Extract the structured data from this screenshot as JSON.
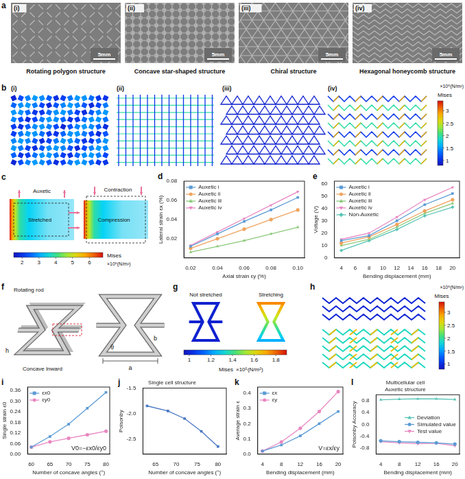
{
  "panels": {
    "a": {
      "items": [
        {
          "numeral": "(i)",
          "caption": "Rotating polygon structure",
          "scale_bar": "5mm"
        },
        {
          "numeral": "(ii)",
          "caption": "Concave star-shaped structure",
          "scale_bar": "5mm"
        },
        {
          "numeral": "(iii)",
          "caption": "Chiral structure",
          "scale_bar": "5mm"
        },
        {
          "numeral": "(iv)",
          "caption": "Hexagonal honeycomb structure",
          "scale_bar": "5mm"
        }
      ]
    },
    "b": {
      "items": [
        "(i)",
        "(ii)",
        "(iii)",
        "(iv)"
      ],
      "colorbar": {
        "title": "Mises",
        "unit": "×10⁵(N/m²)",
        "range": [
          0.8,
          3.4
        ],
        "ticks": [
          1,
          1.5,
          2,
          2.5,
          3
        ]
      }
    },
    "c": {
      "labels": {
        "top_left": "Auxetic",
        "left": "Stretched",
        "top_right": "Contraction",
        "right": "Compression"
      },
      "colorbar": {
        "title": "Mises",
        "unit": "×10⁵(N/m²)",
        "range": [
          1.5,
          6.8
        ],
        "ticks": [
          2,
          3,
          4,
          5,
          6
        ]
      }
    },
    "f": {
      "labels": {
        "rod": "Rotating rod",
        "concave": "Concave Inward",
        "h": "h",
        "a": "a",
        "b": "b",
        "theta": "θ"
      }
    },
    "g": {
      "labels": [
        "Not stretched",
        "Stretching"
      ],
      "colorbar": {
        "title": "Mises",
        "unit": "×10⁵(N/m²)",
        "range": [
          0.95,
          1.9
        ],
        "ticks": [
          1,
          1.2,
          1.4,
          1.6,
          1.8
        ]
      }
    },
    "h": {
      "colorbar": {
        "title": "Mises",
        "unit": "×10⁵(N/m²)",
        "range": [
          0.8,
          3.4
        ],
        "ticks": [
          1,
          1.5,
          2,
          2.5,
          3
        ]
      }
    }
  },
  "chart_data": [
    {
      "panel": "d",
      "type": "line",
      "x_label": "Axial strain εy (%)",
      "y_label": "Lateral strain εx (%)",
      "x": [
        0.02,
        0.04,
        0.06,
        0.08,
        0.1
      ],
      "xlim": [
        0.015,
        0.105
      ],
      "xticks": [
        0.02,
        0.04,
        0.06,
        0.08,
        {
          "value": 0.1,
          "label": "0.10"
        }
      ],
      "ylim": [
        0,
        0.08
      ],
      "yticks": [
        0.02,
        0.04,
        0.06,
        0.08
      ],
      "grid": false,
      "legend": "upper left",
      "series": [
        {
          "name": "Auxetic i",
          "color": "#5b9bd5",
          "marker": "square",
          "values": [
            0.012,
            0.025,
            0.038,
            0.05,
            0.063
          ]
        },
        {
          "name": "Auxetic ii",
          "color": "#f0a35e",
          "marker": "circle",
          "values": [
            0.01,
            0.02,
            0.03,
            0.04,
            0.05
          ]
        },
        {
          "name": "Auxetic iii",
          "color": "#8cc97a",
          "marker": "triangle",
          "values": [
            0.006,
            0.012,
            0.018,
            0.025,
            0.032
          ]
        },
        {
          "name": "Auxetic iv",
          "color": "#e887c1",
          "marker": "triangle_down",
          "values": [
            0.013,
            0.027,
            0.041,
            0.055,
            0.069
          ]
        }
      ]
    },
    {
      "panel": "e",
      "type": "line",
      "x_label": "Bending displacement (mm)",
      "y_label": "Voltage (V)",
      "x": [
        4,
        8,
        12,
        16,
        20
      ],
      "xlim": [
        3,
        21
      ],
      "xticks": [
        4,
        6,
        8,
        10,
        12,
        14,
        16,
        18,
        20
      ],
      "ylim": [
        0,
        62
      ],
      "yticks": [
        0,
        10,
        20,
        30,
        40,
        50,
        60
      ],
      "grid": false,
      "legend": "upper left",
      "series": [
        {
          "name": "Auxetic i",
          "color": "#5b9bd5",
          "marker": "square",
          "values": [
            14,
            18,
            30,
            43,
            52
          ]
        },
        {
          "name": "Auxetic ii",
          "color": "#f0a35e",
          "marker": "circle",
          "values": [
            12,
            17,
            27,
            38,
            47
          ]
        },
        {
          "name": "Auxetic iii",
          "color": "#8cc97a",
          "marker": "triangle",
          "values": [
            10,
            15,
            25,
            36,
            44
          ]
        },
        {
          "name": "Auxetic iv",
          "color": "#e887c1",
          "marker": "triangle_down",
          "values": [
            15,
            20,
            33,
            47,
            57
          ]
        },
        {
          "name": "Non-Auxetic",
          "color": "#58c4b6",
          "marker": "diamond",
          "values": [
            6,
            14,
            23,
            34,
            41
          ]
        }
      ]
    },
    {
      "panel": "i",
      "type": "line",
      "x_label": "Number of concave angles (°)",
      "y_label": "Single strain ε0",
      "x": [
        60,
        65,
        70,
        75,
        80
      ],
      "xlim": [
        59,
        81
      ],
      "xticks": [
        60,
        65,
        70,
        75,
        80
      ],
      "ylim": [
        0,
        0.38
      ],
      "yticks": [
        {
          "value": 0,
          "label": "0.00"
        },
        0.06,
        0.12,
        0.18,
        0.24,
        {
          "value": 0.3,
          "label": "0.30"
        },
        0.36
      ],
      "grid": false,
      "legend": "upper left",
      "annotations": [
        "V0=−εx0/εy0"
      ],
      "series": [
        {
          "name": "εx0",
          "color": "#5b9bd5",
          "marker": "square",
          "values": [
            0.04,
            0.1,
            0.17,
            0.26,
            0.35
          ]
        },
        {
          "name": "εy0",
          "color": "#e887c1",
          "marker": "circle",
          "values": [
            0.04,
            0.07,
            0.09,
            0.11,
            0.13
          ]
        }
      ]
    },
    {
      "panel": "j",
      "type": "line",
      "title": "Single cell structure",
      "x_label": "Number of concave angles (°)",
      "y_label": "Poisonby",
      "x": [
        63,
        68,
        72,
        76,
        80
      ],
      "xlim": [
        62,
        82
      ],
      "xticks": [
        65,
        70,
        75,
        80
      ],
      "ylim": [
        -2.8,
        -1.5
      ],
      "yticks": [
        -2.5,
        {
          "value": -2,
          "label": "-2.0"
        },
        -1.5
      ],
      "grid": false,
      "series": [
        {
          "name": "Single cell structure",
          "color": "#4a78c2",
          "marker": "square",
          "values": [
            -1.85,
            -1.95,
            -2.1,
            -2.35,
            -2.65
          ]
        }
      ]
    },
    {
      "panel": "k",
      "type": "line",
      "x_label": "Bending displacement (mm)",
      "y_label": "Average strain ε",
      "x": [
        4,
        8,
        12,
        16,
        20
      ],
      "xlim": [
        3,
        21
      ],
      "xticks": [
        4,
        8,
        12,
        16,
        20
      ],
      "ylim": [
        0,
        0.44
      ],
      "yticks": [
        {
          "value": 0,
          "label": "0.0"
        },
        0.1,
        0.2,
        0.3,
        0.4
      ],
      "grid": false,
      "legend": "upper left",
      "annotations": [
        "V=εx/εy"
      ],
      "series": [
        {
          "name": "εx",
          "color": "#5b9bd5",
          "marker": "square",
          "values": [
            0.02,
            0.06,
            0.12,
            0.2,
            0.28
          ]
        },
        {
          "name": "εy",
          "color": "#e887c1",
          "marker": "circle",
          "values": [
            0.02,
            0.08,
            0.17,
            0.28,
            0.41
          ]
        }
      ]
    },
    {
      "panel": "l",
      "type": "line",
      "title": "Multicellular cell Auxetic structure",
      "x_label": "Bending displacement (mm)",
      "y_label": "Poisonby Accuracy",
      "x": [
        4,
        8,
        12,
        16,
        20
      ],
      "xlim": [
        3,
        21
      ],
      "xticks": [
        4,
        8,
        12,
        16,
        20
      ],
      "ylim": [
        -1,
        1
      ],
      "yticks": [
        -0.8,
        -0.4,
        {
          "value": 0,
          "label": "0.0"
        },
        0.4,
        0.8
      ],
      "grid": false,
      "legend": "center right",
      "series": [
        {
          "name": "Deviation",
          "color": "#58c4b6",
          "marker": "triangle",
          "values": [
            0.83,
            0.85,
            0.86,
            0.86,
            0.84
          ]
        },
        {
          "name": "Simulated value",
          "color": "#5b9bd5",
          "marker": "circle",
          "values": [
            -0.55,
            -0.58,
            -0.6,
            -0.62,
            -0.66
          ]
        },
        {
          "name": "Test value",
          "color": "#e887c1",
          "marker": "triangle_down",
          "values": [
            -0.58,
            -0.62,
            -0.65,
            -0.63,
            -0.72
          ]
        }
      ]
    }
  ]
}
